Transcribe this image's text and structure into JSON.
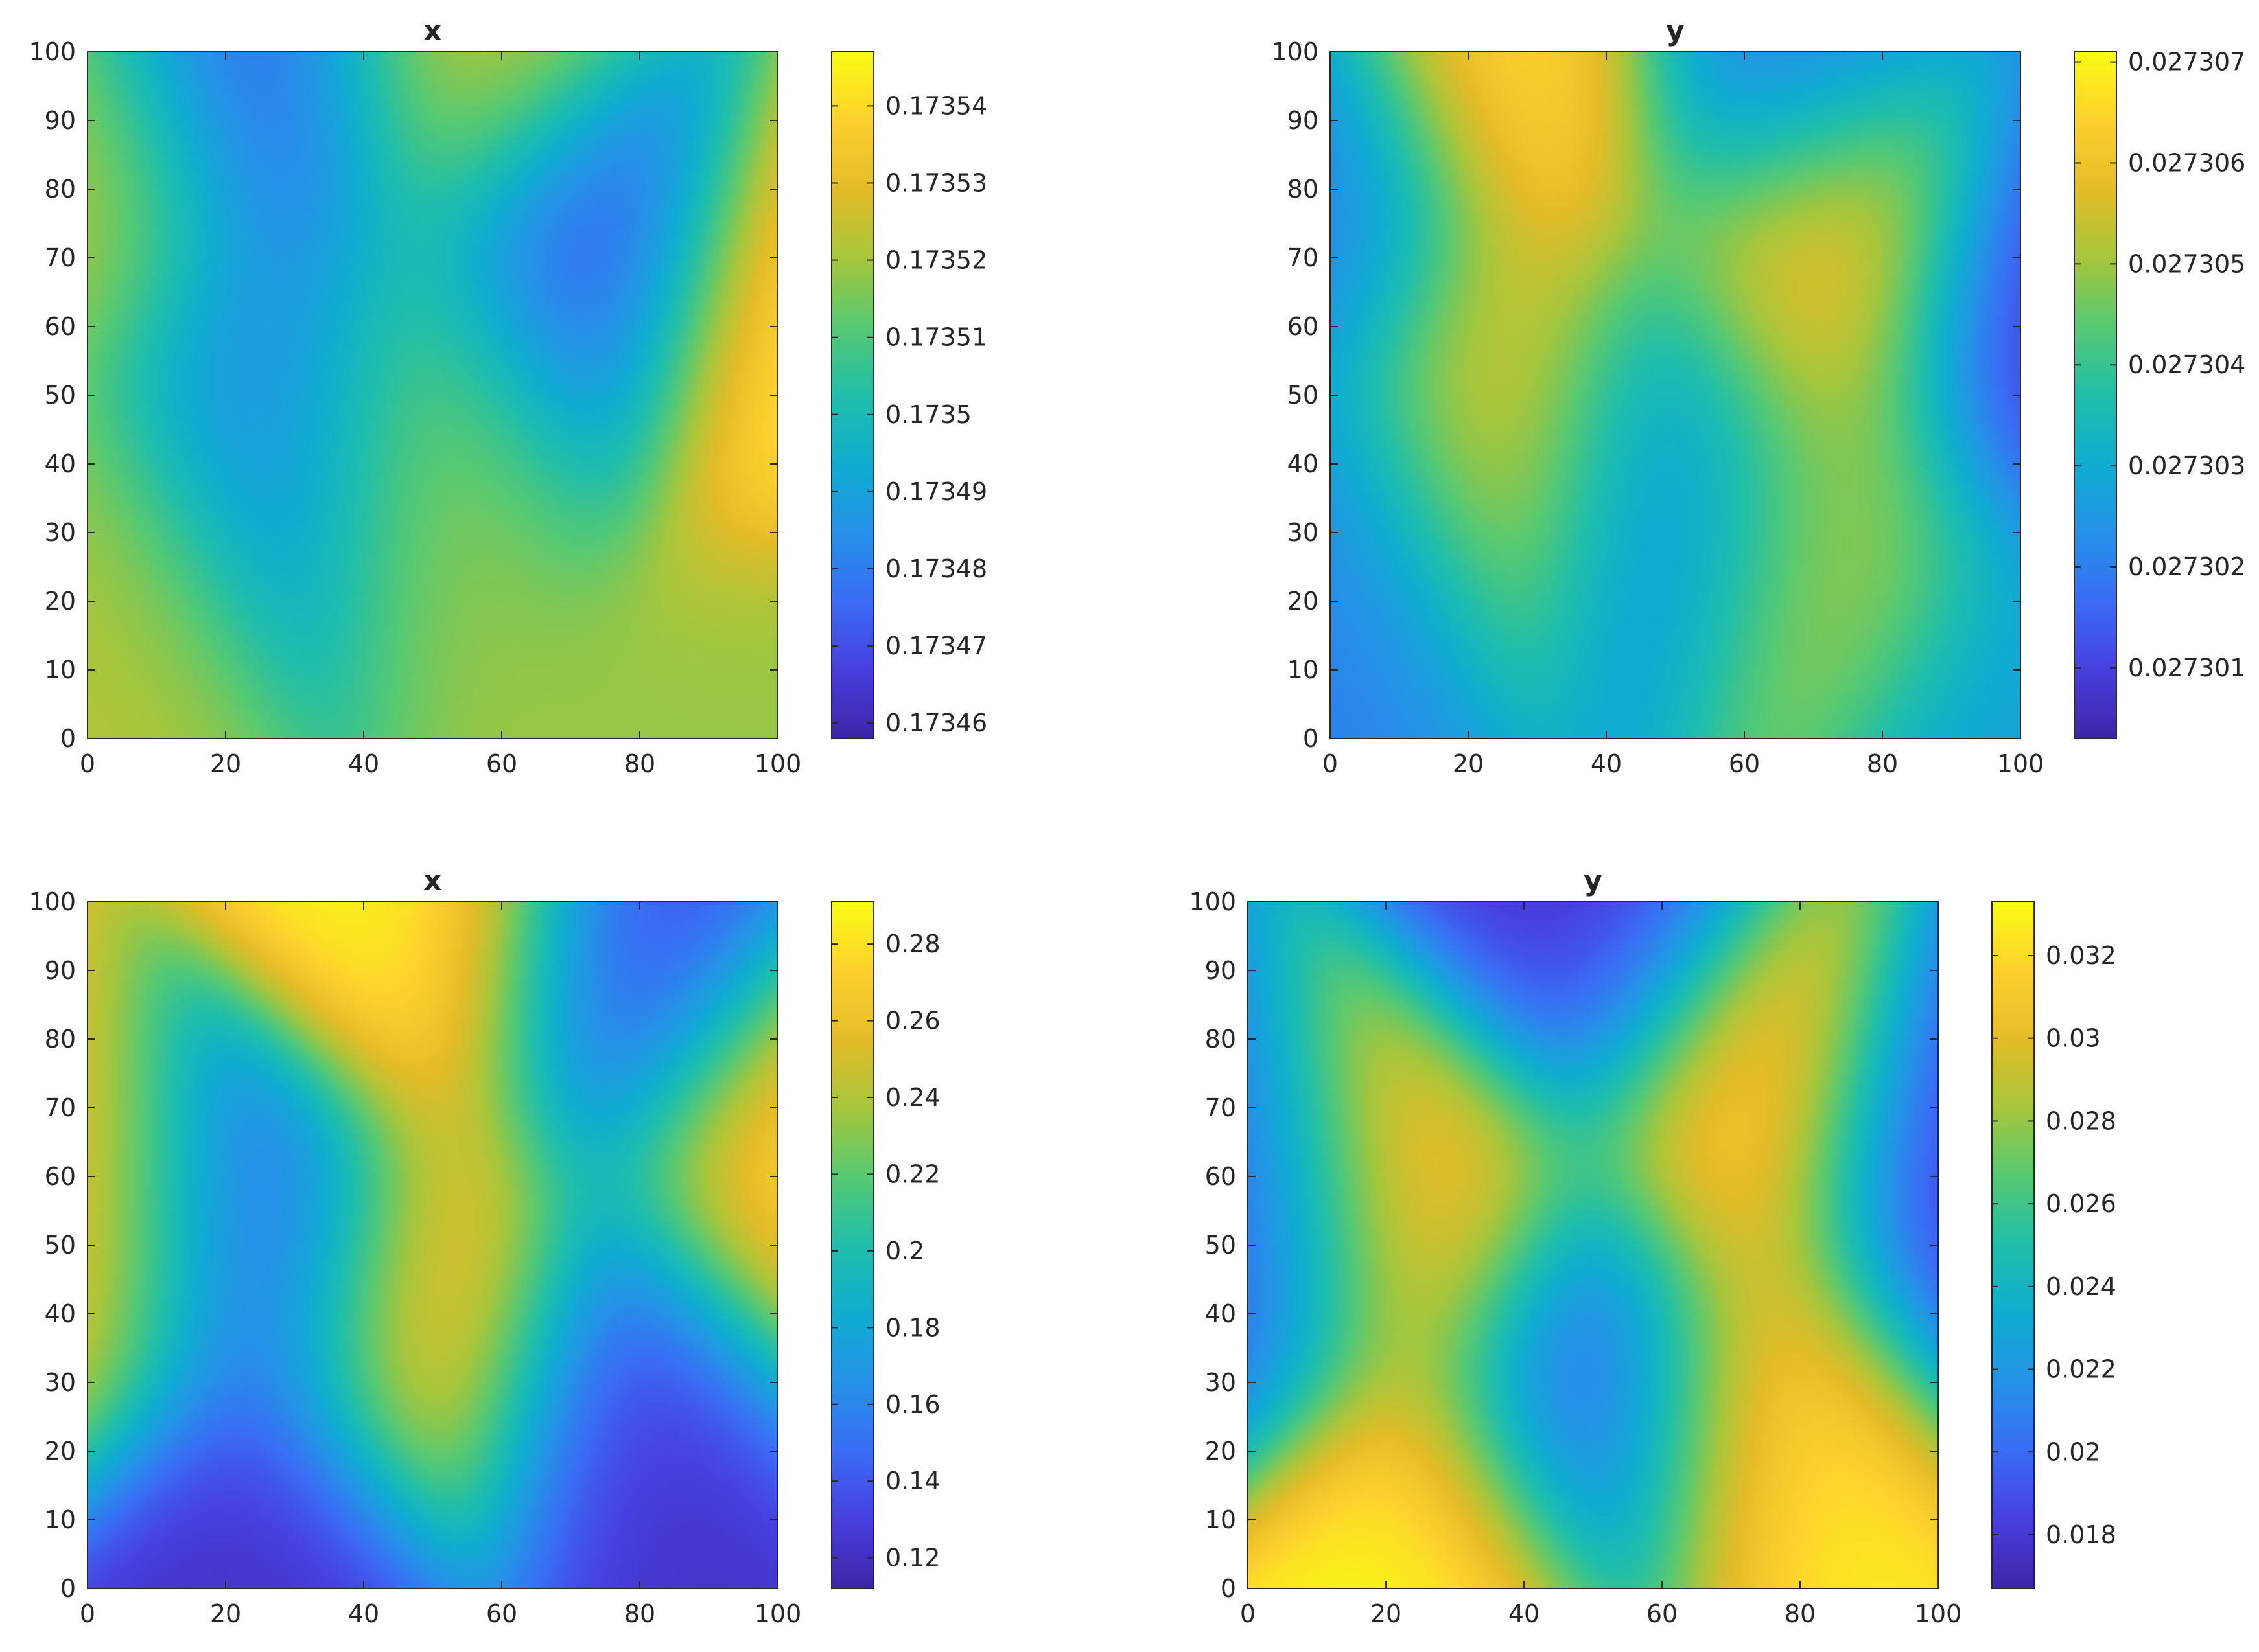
{
  "colors": {
    "colormap": "parula",
    "text": "#262626",
    "axis": "#262626",
    "background": "#ffffff"
  },
  "chart_data": [
    {
      "type": "heatmap",
      "title": "x",
      "xlabel": "",
      "ylabel": "",
      "xlim": [
        0,
        100
      ],
      "ylim": [
        0,
        100
      ],
      "xticks": [
        0,
        20,
        40,
        60,
        80,
        100
      ],
      "yticks": [
        0,
        10,
        20,
        30,
        40,
        50,
        60,
        70,
        80,
        90,
        100
      ],
      "xtick_labels": [
        "0",
        "20",
        "40",
        "60",
        "80",
        "100"
      ],
      "ytick_labels": [
        "0",
        "10",
        "20",
        "30",
        "40",
        "50",
        "60",
        "70",
        "80",
        "90",
        "100"
      ],
      "colorbar": {
        "min": 0.173458,
        "max": 0.173547,
        "ticks": [
          0.17346,
          0.17347,
          0.17348,
          0.17349,
          0.1735,
          0.17351,
          0.17352,
          0.17353,
          0.17354
        ],
        "tick_labels": [
          "0.17346",
          "0.17347",
          "0.17348",
          "0.17349",
          "0.1735",
          "0.17351",
          "0.17352",
          "0.17353",
          "0.17354"
        ]
      },
      "field_extrema": [
        {
          "x": 25,
          "y": 95,
          "level": 0.15
        },
        {
          "x": 25,
          "y": 48,
          "level": 0.25
        },
        {
          "x": 73,
          "y": 68,
          "level": 0.05
        },
        {
          "x": 0,
          "y": 80,
          "level": 0.75
        },
        {
          "x": 0,
          "y": 25,
          "level": 0.72
        },
        {
          "x": 52,
          "y": 45,
          "level": 0.7
        },
        {
          "x": 55,
          "y": 100,
          "level": 0.78
        },
        {
          "x": 100,
          "y": 57,
          "level": 1.0
        },
        {
          "x": 100,
          "y": 3,
          "level": 0.68
        }
      ]
    },
    {
      "type": "heatmap",
      "title": "y",
      "xlabel": "",
      "ylabel": "",
      "xlim": [
        0,
        100
      ],
      "ylim": [
        0,
        100
      ],
      "xticks": [
        0,
        20,
        40,
        60,
        80,
        100
      ],
      "yticks": [
        0,
        10,
        20,
        30,
        40,
        50,
        60,
        70,
        80,
        90,
        100
      ],
      "xtick_labels": [
        "0",
        "20",
        "40",
        "60",
        "80",
        "100"
      ],
      "ytick_labels": [
        "0",
        "10",
        "20",
        "30",
        "40",
        "50",
        "60",
        "70",
        "80",
        "90",
        "100"
      ],
      "colorbar": {
        "min": 0.0273003,
        "max": 0.0273071,
        "ticks": [
          0.027301,
          0.027302,
          0.027303,
          0.027304,
          0.027305,
          0.027306,
          0.027307
        ],
        "tick_labels": [
          "0.027301",
          "0.027302",
          "0.027303",
          "0.027304",
          "0.027305",
          "0.027306",
          "0.027307"
        ]
      },
      "field_extrema": [
        {
          "x": 27,
          "y": 97,
          "level": 0.95
        },
        {
          "x": 24,
          "y": 48,
          "level": 0.85
        },
        {
          "x": 73,
          "y": 68,
          "level": 0.98
        },
        {
          "x": 75,
          "y": 30,
          "level": 0.75
        },
        {
          "x": 0,
          "y": 78,
          "level": 0.22
        },
        {
          "x": 0,
          "y": 28,
          "level": 0.25
        },
        {
          "x": 50,
          "y": 40,
          "level": 0.25
        },
        {
          "x": 65,
          "y": 100,
          "level": 0.2
        },
        {
          "x": 100,
          "y": 57,
          "level": 0.0
        },
        {
          "x": 100,
          "y": 5,
          "level": 0.35
        }
      ]
    },
    {
      "type": "heatmap",
      "title": "x",
      "xlabel": "",
      "ylabel": "",
      "xlim": [
        0,
        100
      ],
      "ylim": [
        0,
        100
      ],
      "xticks": [
        0,
        20,
        40,
        60,
        80,
        100
      ],
      "yticks": [
        0,
        10,
        20,
        30,
        40,
        50,
        60,
        70,
        80,
        90,
        100
      ],
      "xtick_labels": [
        "0",
        "20",
        "40",
        "60",
        "80",
        "100"
      ],
      "ytick_labels": [
        "0",
        "10",
        "20",
        "30",
        "40",
        "50",
        "60",
        "70",
        "80",
        "90",
        "100"
      ],
      "colorbar": {
        "min": 0.112,
        "max": 0.291,
        "ticks": [
          0.12,
          0.14,
          0.16,
          0.18,
          0.2,
          0.22,
          0.24,
          0.26,
          0.28
        ],
        "tick_labels": [
          "0.12",
          "0.14",
          "0.16",
          "0.18",
          "0.2",
          "0.22",
          "0.24",
          "0.26",
          "0.28"
        ]
      },
      "field_extrema": [
        {
          "x": 50,
          "y": 95,
          "level": 1.0
        },
        {
          "x": 50,
          "y": 40,
          "level": 0.95
        },
        {
          "x": 0,
          "y": 50,
          "level": 0.88
        },
        {
          "x": 100,
          "y": 62,
          "level": 0.95
        },
        {
          "x": 25,
          "y": 5,
          "level": 0.05
        },
        {
          "x": 25,
          "y": 50,
          "level": 0.08
        },
        {
          "x": 78,
          "y": 28,
          "level": 0.05
        },
        {
          "x": 78,
          "y": 90,
          "level": 0.08
        }
      ]
    },
    {
      "type": "heatmap",
      "title": "y",
      "xlabel": "",
      "ylabel": "",
      "xlim": [
        0,
        100
      ],
      "ylim": [
        0,
        100
      ],
      "xticks": [
        0,
        20,
        40,
        60,
        80,
        100
      ],
      "yticks": [
        0,
        10,
        20,
        30,
        40,
        50,
        60,
        70,
        80,
        90,
        100
      ],
      "xtick_labels": [
        "0",
        "20",
        "40",
        "60",
        "80",
        "100"
      ],
      "ytick_labels": [
        "0",
        "10",
        "20",
        "30",
        "40",
        "50",
        "60",
        "70",
        "80",
        "90",
        "100"
      ],
      "colorbar": {
        "min": 0.0167,
        "max": 0.0333,
        "ticks": [
          0.018,
          0.02,
          0.022,
          0.024,
          0.026,
          0.028,
          0.03,
          0.032
        ],
        "tick_labels": [
          "0.018",
          "0.02",
          "0.022",
          "0.024",
          "0.026",
          "0.028",
          "0.03",
          "0.032"
        ]
      },
      "field_extrema": [
        {
          "x": 25,
          "y": 5,
          "level": 1.0
        },
        {
          "x": 25,
          "y": 55,
          "level": 0.95
        },
        {
          "x": 73,
          "y": 70,
          "level": 1.0
        },
        {
          "x": 75,
          "y": 25,
          "level": 0.98
        },
        {
          "x": 50,
          "y": 30,
          "level": 0.05
        },
        {
          "x": 50,
          "y": 95,
          "level": 0.05
        },
        {
          "x": 0,
          "y": 50,
          "level": 0.12
        },
        {
          "x": 100,
          "y": 60,
          "level": 0.03
        }
      ]
    }
  ]
}
